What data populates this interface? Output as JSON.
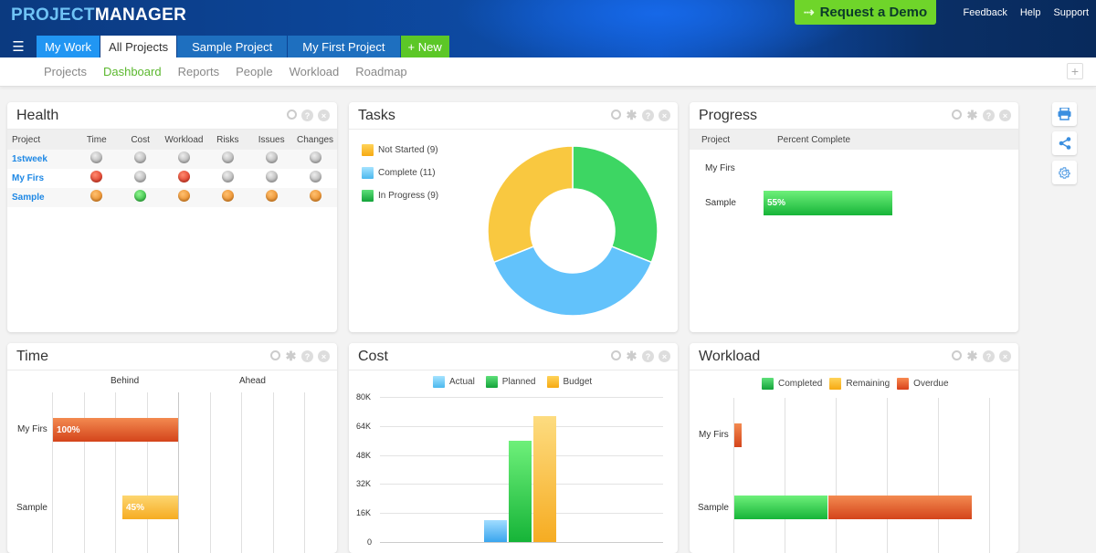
{
  "header": {
    "logo_part1": "PROJECT",
    "logo_part2": "MANAGER",
    "demo_button": "Request a Demo",
    "links": [
      "Feedback",
      "Help",
      "Support"
    ]
  },
  "tabs": {
    "menu_icon": "hamburger-icon",
    "items": [
      "My Work",
      "All Projects",
      "Sample Project",
      "My First Project",
      "+ New"
    ],
    "active": "All Projects"
  },
  "subnav": {
    "items": [
      "Projects",
      "Dashboard",
      "Reports",
      "People",
      "Workload",
      "Roadmap"
    ],
    "active": "Dashboard",
    "add_button": "+"
  },
  "side_tools": [
    "print-icon",
    "share-icon",
    "settings-icon"
  ],
  "health": {
    "title": "Health",
    "columns": [
      "Project",
      "Time",
      "Cost",
      "Workload",
      "Risks",
      "Issues",
      "Changes"
    ],
    "rows": [
      {
        "project": "1stweek",
        "status": [
          "gray",
          "gray",
          "gray",
          "gray",
          "gray",
          "gray"
        ]
      },
      {
        "project": "My Firs",
        "status": [
          "red",
          "gray",
          "red",
          "gray",
          "gray",
          "gray"
        ]
      },
      {
        "project": "Sample",
        "status": [
          "orange",
          "green",
          "orange",
          "orange",
          "orange",
          "orange"
        ]
      }
    ]
  },
  "tasks": {
    "title": "Tasks",
    "legend": [
      {
        "label": "Not Started (9)",
        "color": "#f9c840"
      },
      {
        "label": "Complete (11)",
        "color": "#62c2fb"
      },
      {
        "label": "In Progress (9)",
        "color": "#3dd663"
      }
    ]
  },
  "progress": {
    "title": "Progress",
    "columns": [
      "Project",
      "Percent Complete"
    ],
    "rows": [
      {
        "project": "My Firs",
        "percent": null,
        "label": ""
      },
      {
        "project": "Sample",
        "percent": 55,
        "label": "55%"
      }
    ]
  },
  "time": {
    "title": "Time",
    "headers": [
      "Behind",
      "Ahead"
    ],
    "rows": [
      {
        "project": "My Firs",
        "label": "100%",
        "value": 100,
        "color": "#e05a25"
      },
      {
        "project": "Sample",
        "label": "45%",
        "value": 45,
        "color": "#f8b62c"
      }
    ]
  },
  "cost": {
    "title": "Cost",
    "legend": [
      "Actual",
      "Planned",
      "Budget"
    ],
    "yticks": [
      "80K",
      "64K",
      "48K",
      "32K",
      "16K",
      "0"
    ]
  },
  "workload": {
    "title": "Workload",
    "legend": [
      "Completed",
      "Remaining",
      "Overdue"
    ],
    "rows": [
      "My Firs",
      "Sample"
    ]
  },
  "chart_data": [
    {
      "type": "pie",
      "title": "Tasks",
      "categories": [
        "Not Started",
        "Complete",
        "In Progress"
      ],
      "values": [
        9,
        11,
        9
      ],
      "colors": [
        "#f9c840",
        "#62c2fb",
        "#3dd663"
      ],
      "donut": true
    },
    {
      "type": "bar",
      "title": "Progress",
      "categories": [
        "My Firs",
        "Sample"
      ],
      "values": [
        null,
        55
      ],
      "orientation": "horizontal",
      "xlabel": "Percent Complete"
    },
    {
      "type": "bar",
      "title": "Time",
      "categories": [
        "My Firs",
        "Sample"
      ],
      "values": [
        -100,
        -45
      ],
      "labels": [
        "100%",
        "45%"
      ],
      "orientation": "horizontal",
      "axis_labels": [
        "Behind",
        "Ahead"
      ]
    },
    {
      "type": "bar",
      "title": "Cost",
      "categories": [
        ""
      ],
      "series": [
        {
          "name": "Actual",
          "values": [
            12000
          ]
        },
        {
          "name": "Planned",
          "values": [
            56000
          ]
        },
        {
          "name": "Budget",
          "values": [
            70000
          ]
        }
      ],
      "ylim": [
        0,
        80000
      ],
      "yticks": [
        "0",
        "16K",
        "32K",
        "48K",
        "64K",
        "80K"
      ],
      "grid": true,
      "legend_position": "top"
    },
    {
      "type": "bar",
      "title": "Workload",
      "orientation": "horizontal",
      "stacked": true,
      "categories": [
        "My Firs",
        "Sample"
      ],
      "series": [
        {
          "name": "Completed",
          "values": [
            0,
            37
          ]
        },
        {
          "name": "Remaining",
          "values": [
            0,
            0
          ]
        },
        {
          "name": "Overdue",
          "values": [
            3,
            56
          ]
        }
      ],
      "legend_position": "top"
    }
  ]
}
